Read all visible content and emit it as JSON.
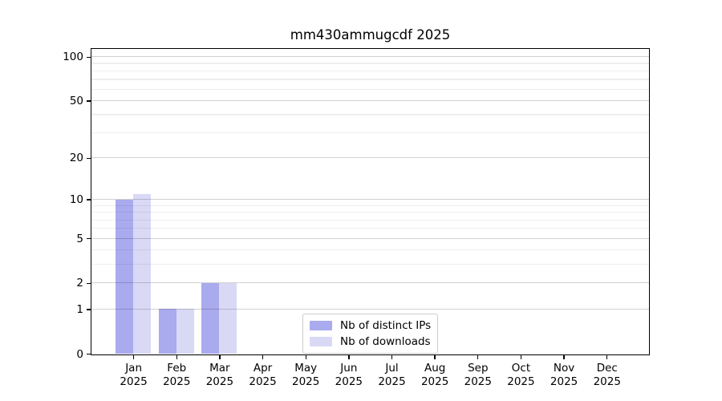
{
  "chart_data": {
    "type": "bar",
    "title": "mm430ammugcdf 2025",
    "categories": [
      {
        "month": "Jan",
        "year": "2025"
      },
      {
        "month": "Feb",
        "year": "2025"
      },
      {
        "month": "Mar",
        "year": "2025"
      },
      {
        "month": "Apr",
        "year": "2025"
      },
      {
        "month": "May",
        "year": "2025"
      },
      {
        "month": "Jun",
        "year": "2025"
      },
      {
        "month": "Jul",
        "year": "2025"
      },
      {
        "month": "Aug",
        "year": "2025"
      },
      {
        "month": "Sep",
        "year": "2025"
      },
      {
        "month": "Oct",
        "year": "2025"
      },
      {
        "month": "Nov",
        "year": "2025"
      },
      {
        "month": "Dec",
        "year": "2025"
      }
    ],
    "series": [
      {
        "name": "Nb of distinct IPs",
        "color": "#aaaaee",
        "values": [
          10,
          1,
          2,
          0,
          0,
          0,
          0,
          0,
          0,
          0,
          0,
          0
        ]
      },
      {
        "name": "Nb of downloads",
        "color": "#d9d9f6",
        "values": [
          11,
          1,
          2,
          0,
          0,
          0,
          0,
          0,
          0,
          0,
          0,
          0
        ]
      }
    ],
    "yscale": "log10(1+v)",
    "ylim": [
      0,
      113
    ],
    "yticks": [
      0,
      1,
      2,
      5,
      10,
      20,
      50,
      100
    ],
    "minor_yticks": [
      3,
      4,
      6,
      7,
      8,
      9,
      30,
      40,
      60,
      70,
      80,
      90
    ],
    "grid": "horizontal",
    "legend_position": "lower-center-inside",
    "colors": {
      "grid_major": "rgba(0,0,0,0.18)",
      "grid_minor": "rgba(0,0,0,0.065)",
      "spine": "#000000",
      "background": "#ffffff"
    }
  }
}
